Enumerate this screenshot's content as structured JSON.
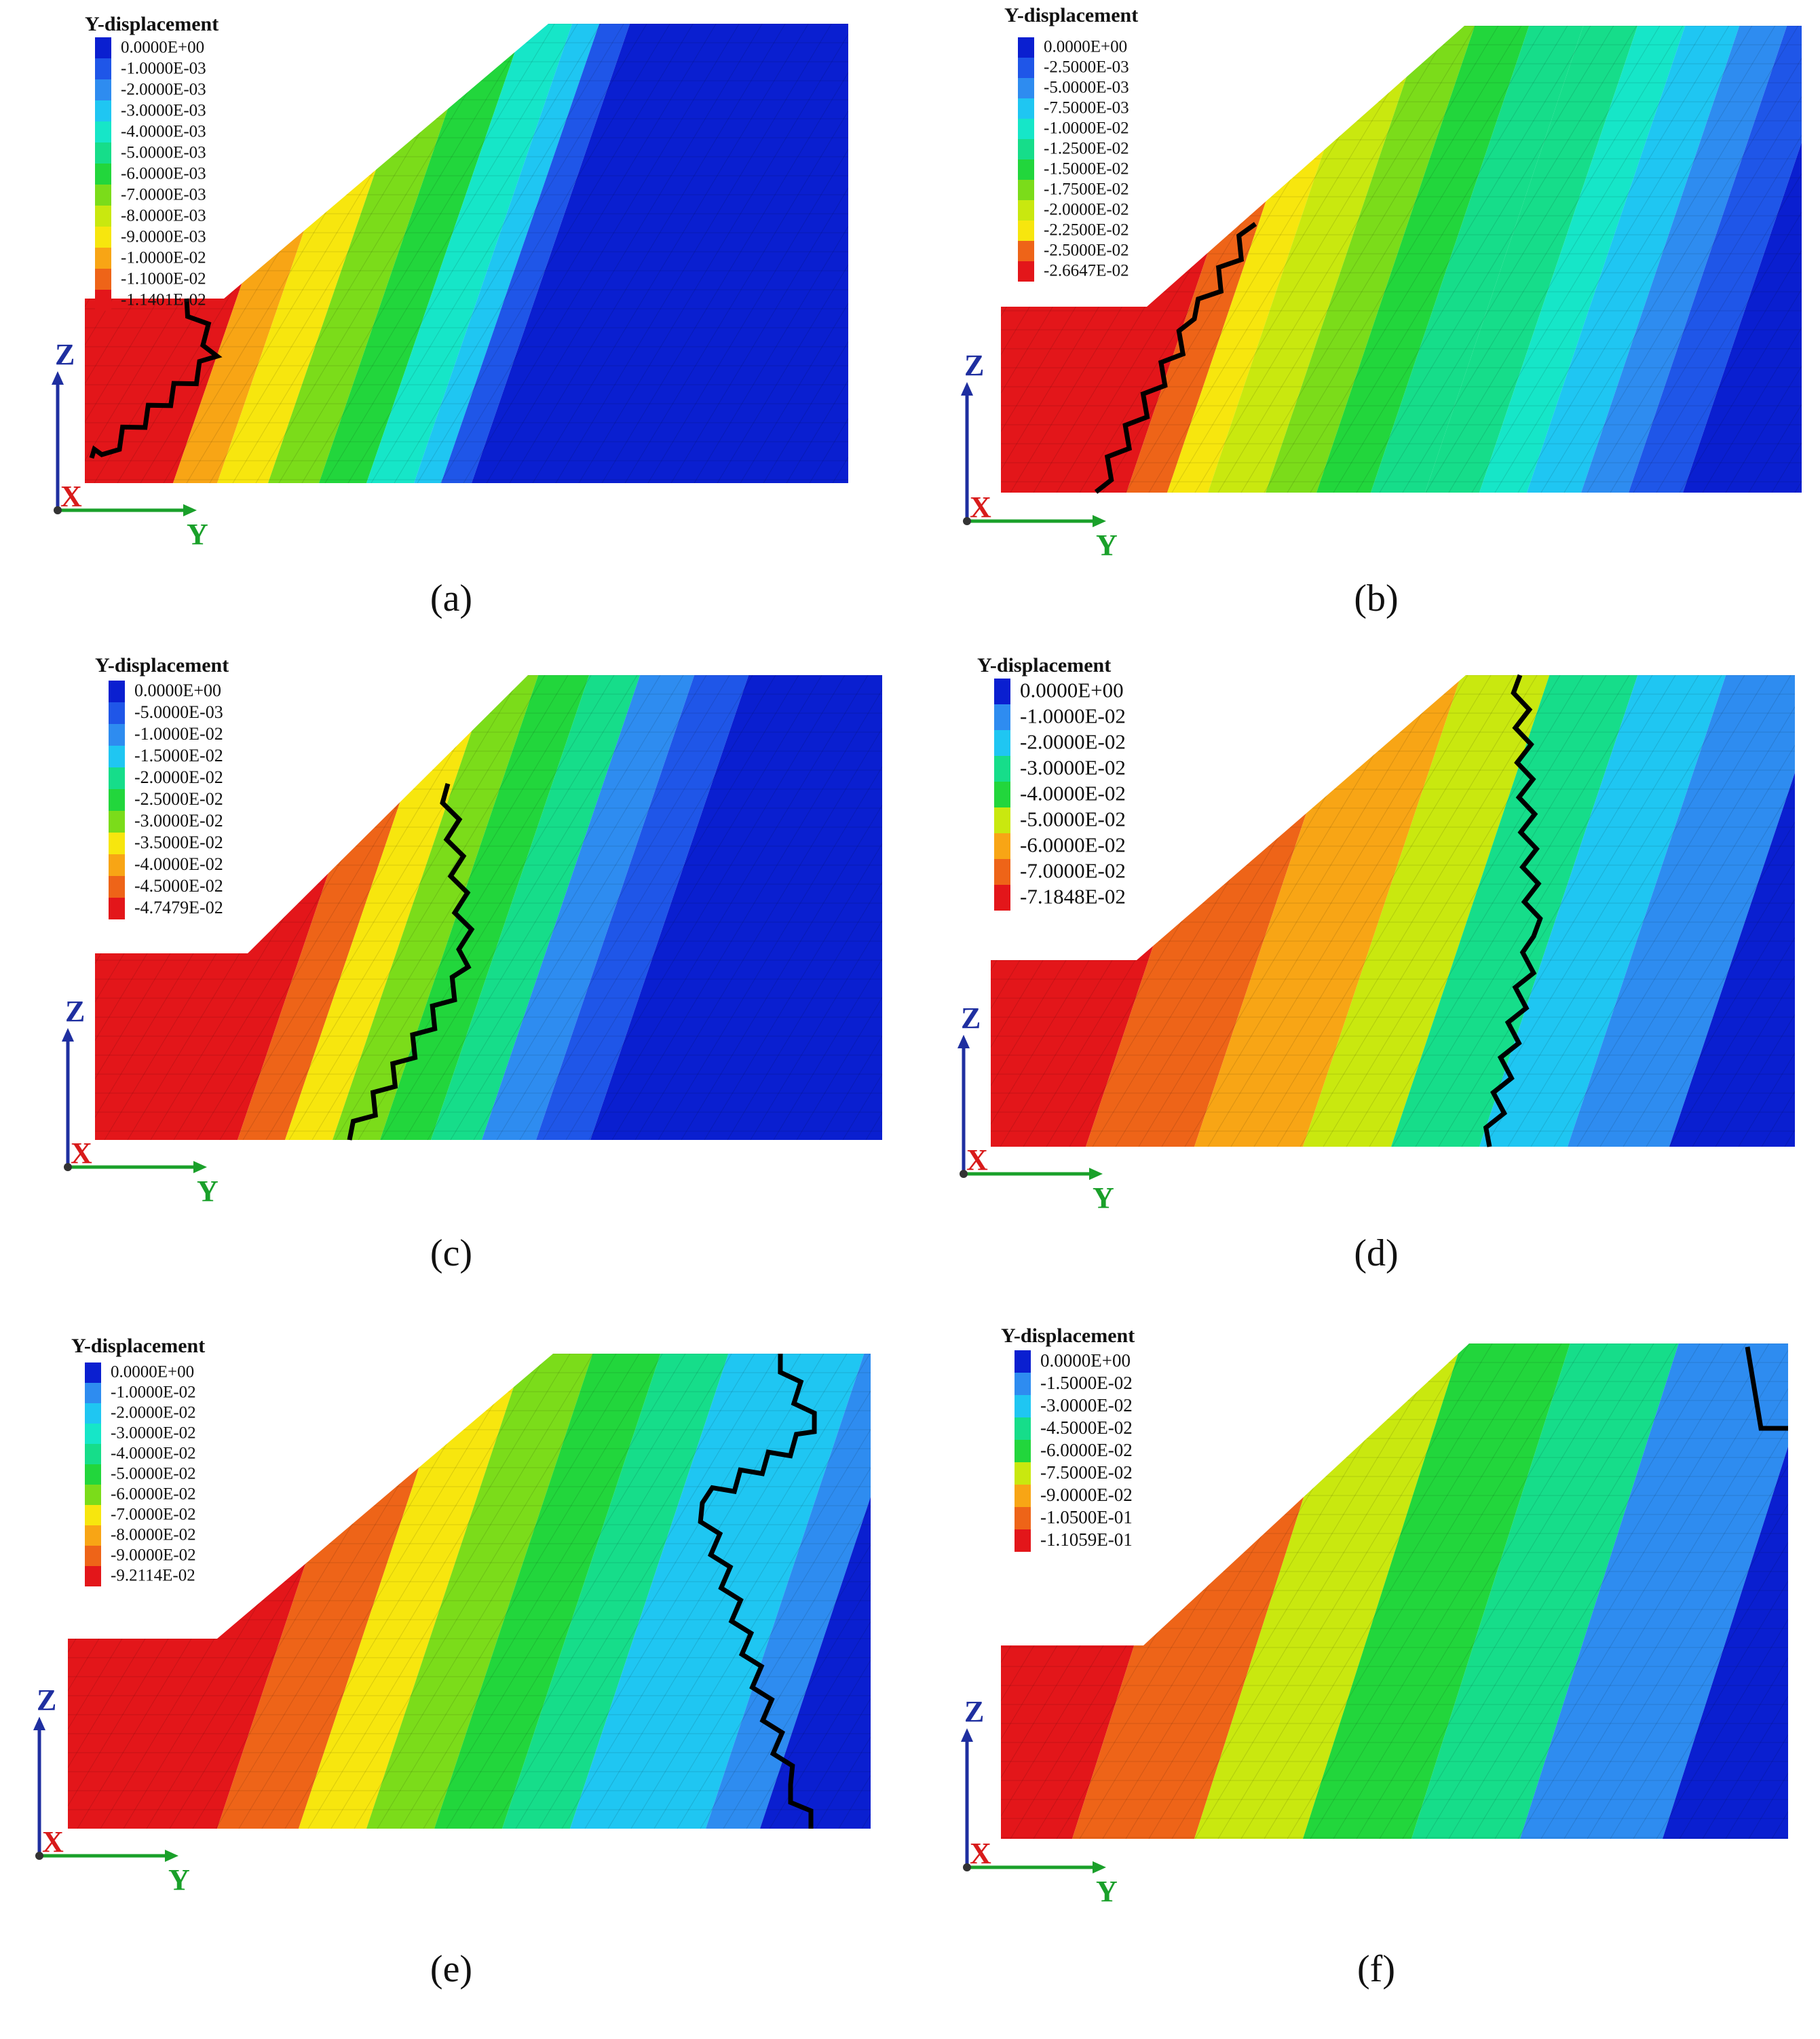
{
  "legend_title": "Y-displacement",
  "axis_labels": {
    "z": "Z",
    "x": "X",
    "y": "Y"
  },
  "colors": {
    "axis_z": "#1f2fa0",
    "axis_x": "#d81b1b",
    "axis_y": "#1aa02a",
    "slip_line": "#000000",
    "mesh_line": "rgba(0,0,0,0.12)"
  },
  "panels": [
    {
      "label": "(a)",
      "legend": [
        {
          "text": "0.0000E+00",
          "color": "#0a1fd0"
        },
        {
          "text": "-1.0000E-03",
          "color": "#1f56e8"
        },
        {
          "text": "-2.0000E-03",
          "color": "#2e8cf0"
        },
        {
          "text": "-3.0000E-03",
          "color": "#1fc6f2"
        },
        {
          "text": "-4.0000E-03",
          "color": "#16e6c8"
        },
        {
          "text": "-5.0000E-03",
          "color": "#16dd8a"
        },
        {
          "text": "-6.0000E-03",
          "color": "#22d63c"
        },
        {
          "text": "-7.0000E-03",
          "color": "#7bdc1a"
        },
        {
          "text": "-8.0000E-03",
          "color": "#c9e80f"
        },
        {
          "text": "-9.0000E-03",
          "color": "#f7e60e"
        },
        {
          "text": "-1.0000E-02",
          "color": "#f8a515"
        },
        {
          "text": "-1.1000E-02",
          "color": "#ee6418"
        },
        {
          "text": "-1.1401E-02",
          "color": "#e3161a"
        }
      ]
    },
    {
      "label": "(b)",
      "legend": [
        {
          "text": "0.0000E+00",
          "color": "#0a1fd0"
        },
        {
          "text": "-2.5000E-03",
          "color": "#1f56e8"
        },
        {
          "text": "-5.0000E-03",
          "color": "#2e8cf0"
        },
        {
          "text": "-7.5000E-03",
          "color": "#1fc6f2"
        },
        {
          "text": "-1.0000E-02",
          "color": "#16e6c8"
        },
        {
          "text": "-1.2500E-02",
          "color": "#16dd8a"
        },
        {
          "text": "-1.5000E-02",
          "color": "#22d63c"
        },
        {
          "text": "-1.7500E-02",
          "color": "#7bdc1a"
        },
        {
          "text": "-2.0000E-02",
          "color": "#c9e80f"
        },
        {
          "text": "-2.2500E-02",
          "color": "#f7e60e"
        },
        {
          "text": "-2.5000E-02",
          "color": "#ee6418"
        },
        {
          "text": "-2.6647E-02",
          "color": "#e3161a"
        }
      ]
    },
    {
      "label": "(c)",
      "legend": [
        {
          "text": "0.0000E+00",
          "color": "#0a1fd0"
        },
        {
          "text": "-5.0000E-03",
          "color": "#1f56e8"
        },
        {
          "text": "-1.0000E-02",
          "color": "#2e8cf0"
        },
        {
          "text": "-1.5000E-02",
          "color": "#1fc6f2"
        },
        {
          "text": "-2.0000E-02",
          "color": "#16dd8a"
        },
        {
          "text": "-2.5000E-02",
          "color": "#22d63c"
        },
        {
          "text": "-3.0000E-02",
          "color": "#7bdc1a"
        },
        {
          "text": "-3.5000E-02",
          "color": "#f7e60e"
        },
        {
          "text": "-4.0000E-02",
          "color": "#f8a515"
        },
        {
          "text": "-4.5000E-02",
          "color": "#ee6418"
        },
        {
          "text": "-4.7479E-02",
          "color": "#e3161a"
        }
      ]
    },
    {
      "label": "(d)",
      "legend": [
        {
          "text": "0.0000E+00",
          "color": "#0a1fd0"
        },
        {
          "text": "-1.0000E-02",
          "color": "#2e8cf0"
        },
        {
          "text": "-2.0000E-02",
          "color": "#1fc6f2"
        },
        {
          "text": "-3.0000E-02",
          "color": "#16dd8a"
        },
        {
          "text": "-4.0000E-02",
          "color": "#22d63c"
        },
        {
          "text": "-5.0000E-02",
          "color": "#c9e80f"
        },
        {
          "text": "-6.0000E-02",
          "color": "#f8a515"
        },
        {
          "text": "-7.0000E-02",
          "color": "#ee6418"
        },
        {
          "text": "-7.1848E-02",
          "color": "#e3161a"
        }
      ]
    },
    {
      "label": "(e)",
      "legend": [
        {
          "text": "0.0000E+00",
          "color": "#0a1fd0"
        },
        {
          "text": "-1.0000E-02",
          "color": "#2e8cf0"
        },
        {
          "text": "-2.0000E-02",
          "color": "#1fc6f2"
        },
        {
          "text": "-3.0000E-02",
          "color": "#16e6c8"
        },
        {
          "text": "-4.0000E-02",
          "color": "#16dd8a"
        },
        {
          "text": "-5.0000E-02",
          "color": "#22d63c"
        },
        {
          "text": "-6.0000E-02",
          "color": "#7bdc1a"
        },
        {
          "text": "-7.0000E-02",
          "color": "#f7e60e"
        },
        {
          "text": "-8.0000E-02",
          "color": "#f8a515"
        },
        {
          "text": "-9.0000E-02",
          "color": "#ee6418"
        },
        {
          "text": "-9.2114E-02",
          "color": "#e3161a"
        }
      ]
    },
    {
      "label": "(f)",
      "legend": [
        {
          "text": "0.0000E+00",
          "color": "#0a1fd0"
        },
        {
          "text": "-1.5000E-02",
          "color": "#2e8cf0"
        },
        {
          "text": "-3.0000E-02",
          "color": "#1fc6f2"
        },
        {
          "text": "-4.5000E-02",
          "color": "#16dd8a"
        },
        {
          "text": "-6.0000E-02",
          "color": "#22d63c"
        },
        {
          "text": "-7.5000E-02",
          "color": "#c9e80f"
        },
        {
          "text": "-9.0000E-02",
          "color": "#f8a515"
        },
        {
          "text": "-1.0500E-01",
          "color": "#ee6418"
        },
        {
          "text": "-1.1059E-01",
          "color": "#e3161a"
        }
      ]
    }
  ]
}
